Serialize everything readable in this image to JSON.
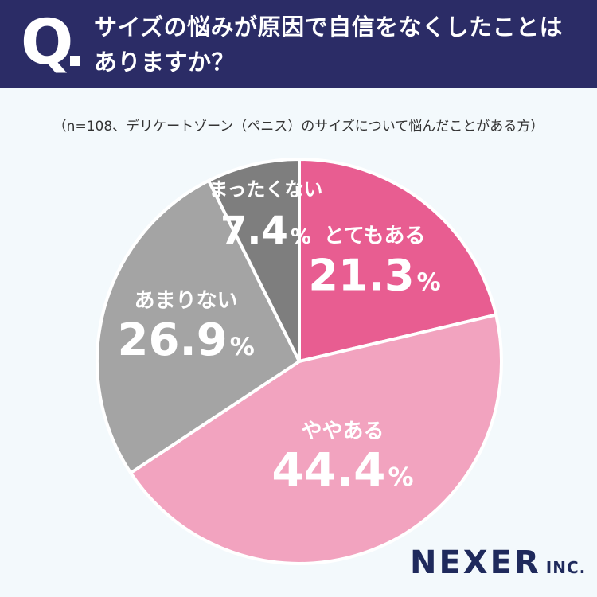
{
  "header": {
    "q_mark": "Q",
    "question_line1": "サイズの悩みが原因で自信をなくしたことは",
    "question_line2": "ありますか？"
  },
  "note": "（n=108、デリケートゾーン（ペニス）のサイズについて悩んだことがある方）",
  "brand": {
    "name": "NEXER",
    "suffix": "INC."
  },
  "chart_data": {
    "type": "pie",
    "title": "サイズの悩みが原因で自信をなくしたことはありますか？",
    "unit": "%",
    "slices": [
      {
        "label": "とてもある",
        "value": 21.3,
        "value_text": "21.3",
        "color": "#e85d91",
        "text_color": "#ffffff"
      },
      {
        "label": "ややある",
        "value": 44.4,
        "value_text": "44.4",
        "color": "#f2a3bf",
        "text_color": "#ffffff"
      },
      {
        "label": "あまりない",
        "value": 26.9,
        "value_text": "26.9",
        "color": "#a4a4a4",
        "text_color": "#ffffff"
      },
      {
        "label": "まったくない",
        "value": 7.4,
        "value_text": "7.4",
        "color": "#7e7e7e",
        "text_color": "#ffffff"
      }
    ]
  }
}
